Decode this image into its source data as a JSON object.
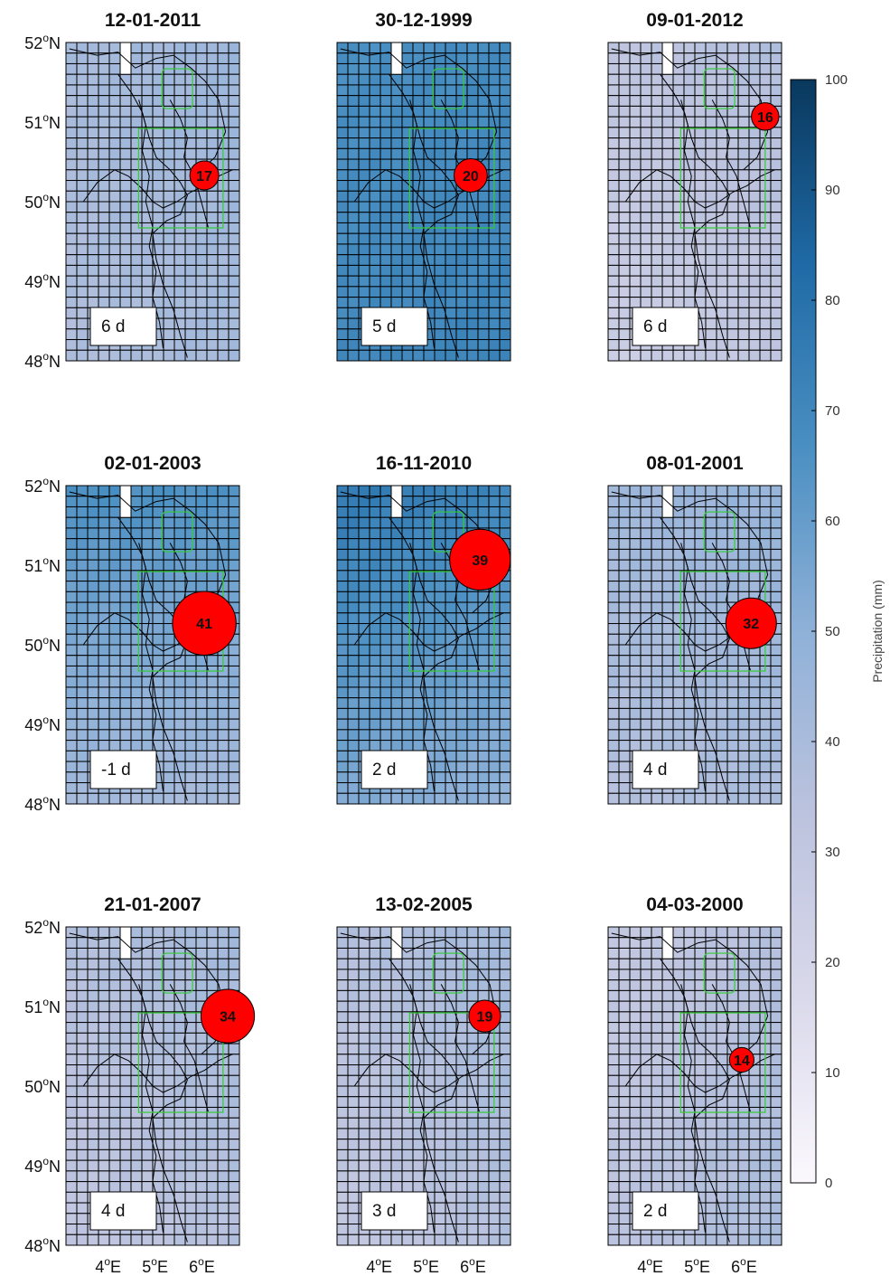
{
  "figure": {
    "panel_titles": [
      "12-01-2011",
      "30-12-1999",
      "09-01-2012",
      "02-01-2003",
      "16-11-2010",
      "08-01-2001",
      "21-01-2007",
      "13-02-2005",
      "04-03-2000"
    ],
    "lat_ticks": [
      "52",
      "51",
      "50",
      "49",
      "48"
    ],
    "lat_suffix": "N",
    "lon_ticks": [
      "4",
      "5",
      "6"
    ],
    "lon_suffix": "E",
    "degree_symbol": "o",
    "colorbar": {
      "label": "Precipitation (mm)",
      "ticks": [
        "0",
        "10",
        "20",
        "30",
        "40",
        "50",
        "60",
        "70",
        "80",
        "90",
        "100"
      ],
      "min": 0,
      "max": 100,
      "colors": [
        "#fbf8fd",
        "#dad9eb",
        "#bcc3de",
        "#8fb1d8",
        "#4a8fc2",
        "#1f6aa6",
        "#09385d"
      ]
    },
    "marker_color": "#ff0000",
    "domain_box_color": "#33cc33"
  },
  "panels": [
    {
      "date": "12-01-2011",
      "lag_label": "6 d",
      "circle_value": 17,
      "circle_position": {
        "lon": 6.05,
        "lat": 50.33
      },
      "precip_field": {
        "north": 42,
        "south": 36,
        "west": 40,
        "east": 48
      }
    },
    {
      "date": "30-12-1999",
      "lag_label": "5 d",
      "circle_value": 20,
      "circle_position": {
        "lon": 5.95,
        "lat": 50.33
      },
      "precip_field": {
        "north": 67,
        "south": 73,
        "west": 66,
        "east": 70
      }
    },
    {
      "date": "09-01-2012",
      "lag_label": "6 d",
      "circle_value": 16,
      "circle_position": {
        "lon": 6.45,
        "lat": 51.07
      },
      "precip_field": {
        "north": 35,
        "south": 22,
        "west": 28,
        "east": 40
      }
    },
    {
      "date": "02-01-2003",
      "lag_label": "-1 d",
      "circle_value": 41,
      "circle_position": {
        "lon": 6.05,
        "lat": 50.27
      },
      "precip_field": {
        "north": 75,
        "south": 27,
        "west": 58,
        "east": 55
      }
    },
    {
      "date": "16-11-2010",
      "lag_label": "2 d",
      "circle_value": 39,
      "circle_position": {
        "lon": 6.15,
        "lat": 51.07
      },
      "precip_field": {
        "north": 82,
        "south": 38,
        "west": 70,
        "east": 60
      }
    },
    {
      "date": "08-01-2001",
      "lag_label": "4 d",
      "circle_value": 32,
      "circle_position": {
        "lon": 6.15,
        "lat": 50.27
      },
      "precip_field": {
        "north": 45,
        "south": 30,
        "west": 42,
        "east": 50
      }
    },
    {
      "date": "21-01-2007",
      "lag_label": "4 d",
      "circle_value": 34,
      "circle_position": {
        "lon": 6.55,
        "lat": 50.88
      },
      "precip_field": {
        "north": 40,
        "south": 28,
        "west": 33,
        "east": 44
      }
    },
    {
      "date": "13-02-2005",
      "lag_label": "3 d",
      "circle_value": 19,
      "circle_position": {
        "lon": 6.25,
        "lat": 50.88
      },
      "precip_field": {
        "north": 40,
        "south": 28,
        "west": 32,
        "east": 45
      }
    },
    {
      "date": "04-03-2000",
      "lag_label": "2 d",
      "circle_value": 14,
      "circle_position": {
        "lon": 5.95,
        "lat": 50.33
      },
      "precip_field": {
        "north": 30,
        "south": 38,
        "west": 28,
        "east": 42
      }
    }
  ]
}
